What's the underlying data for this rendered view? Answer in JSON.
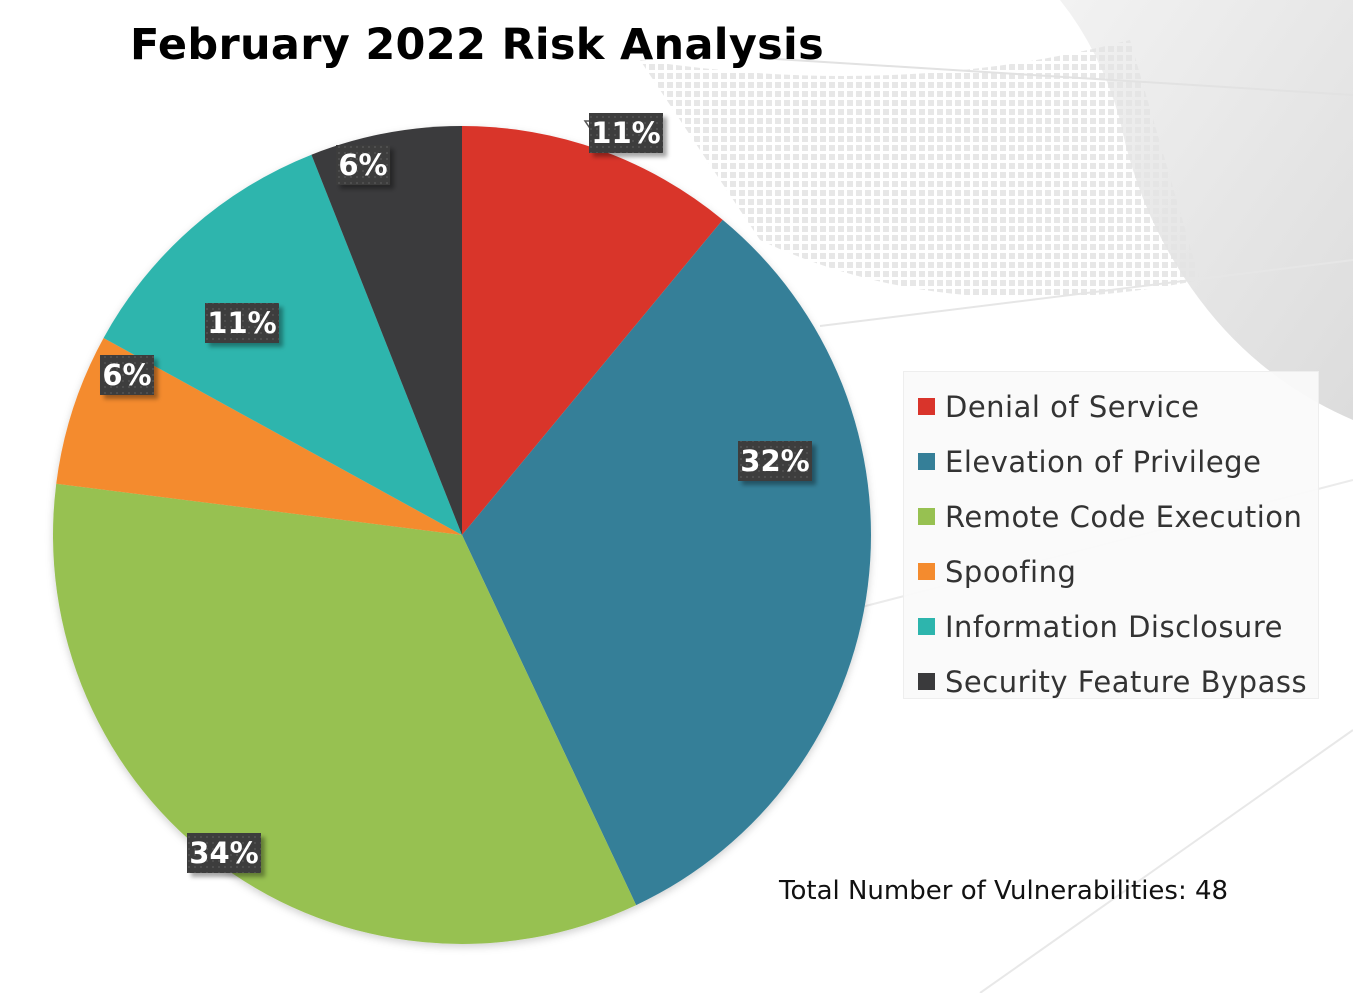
{
  "chart_data": {
    "type": "pie",
    "title": "February 2022 Risk Analysis",
    "legend_position": "right",
    "slices": [
      {
        "name": "Denial of Service",
        "value": 11,
        "label": "11%",
        "color": "#d9342b"
      },
      {
        "name": "Elevation of Privilege",
        "value": 32,
        "label": "32%",
        "color": "#357f98"
      },
      {
        "name": "Remote Code Execution",
        "value": 34,
        "label": "34%",
        "color": "#97c151"
      },
      {
        "name": "Spoofing",
        "value": 6,
        "label": "6%",
        "color": "#f48b2e"
      },
      {
        "name": "Information Disclosure",
        "value": 11,
        "label": "11%",
        "color": "#2db5ad"
      },
      {
        "name": "Security Feature Bypass",
        "value": 6,
        "label": "6%",
        "color": "#3a3a3c"
      }
    ],
    "footnote": "Total Number of Vulnerabilities: 48"
  },
  "colors": {
    "label_box": "#3d3d3d"
  }
}
